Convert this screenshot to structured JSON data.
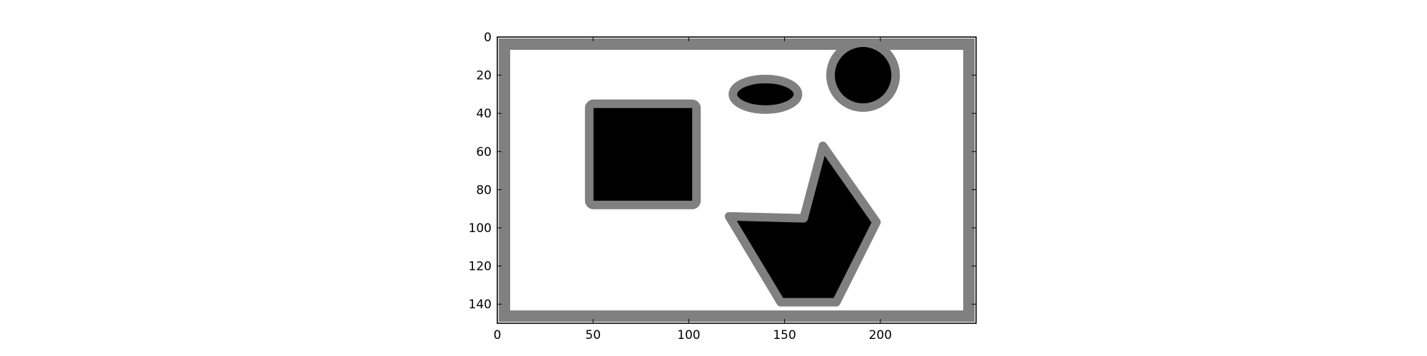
{
  "figure": {
    "background_color": "#ffffff",
    "frame_color": "#000000",
    "image_background_color": "#ffffff",
    "border_color": "#808080",
    "shape_fill_color": "#000000",
    "outline_color": "#808080"
  },
  "chart_data": {
    "type": "image",
    "title": "",
    "xlabel": "",
    "ylabel": "",
    "xlim": [
      0,
      250
    ],
    "ylim": [
      150,
      0
    ],
    "x_ticks": [
      "0",
      "50",
      "100",
      "150",
      "200"
    ],
    "y_ticks": [
      "0",
      "20",
      "40",
      "60",
      "80",
      "100",
      "120",
      "140"
    ],
    "grid": false,
    "legend": "none",
    "image_shapes": [
      {
        "kind": "frame",
        "x0": 0,
        "y0": 0,
        "x1": 250,
        "y1": 150
      },
      {
        "kind": "square",
        "x0": 48,
        "y0": 35,
        "x1": 104,
        "y1": 88
      },
      {
        "kind": "ellipse",
        "cx": 140,
        "cy": 30,
        "rx": 17,
        "ry": 8
      },
      {
        "kind": "circle",
        "cx": 191,
        "cy": 20,
        "r": 17
      },
      {
        "kind": "polygon",
        "points": [
          [
            121,
            94
          ],
          [
            160,
            95
          ],
          [
            170,
            57
          ],
          [
            198,
            97
          ],
          [
            177,
            139
          ],
          [
            148,
            139
          ]
        ]
      }
    ]
  }
}
